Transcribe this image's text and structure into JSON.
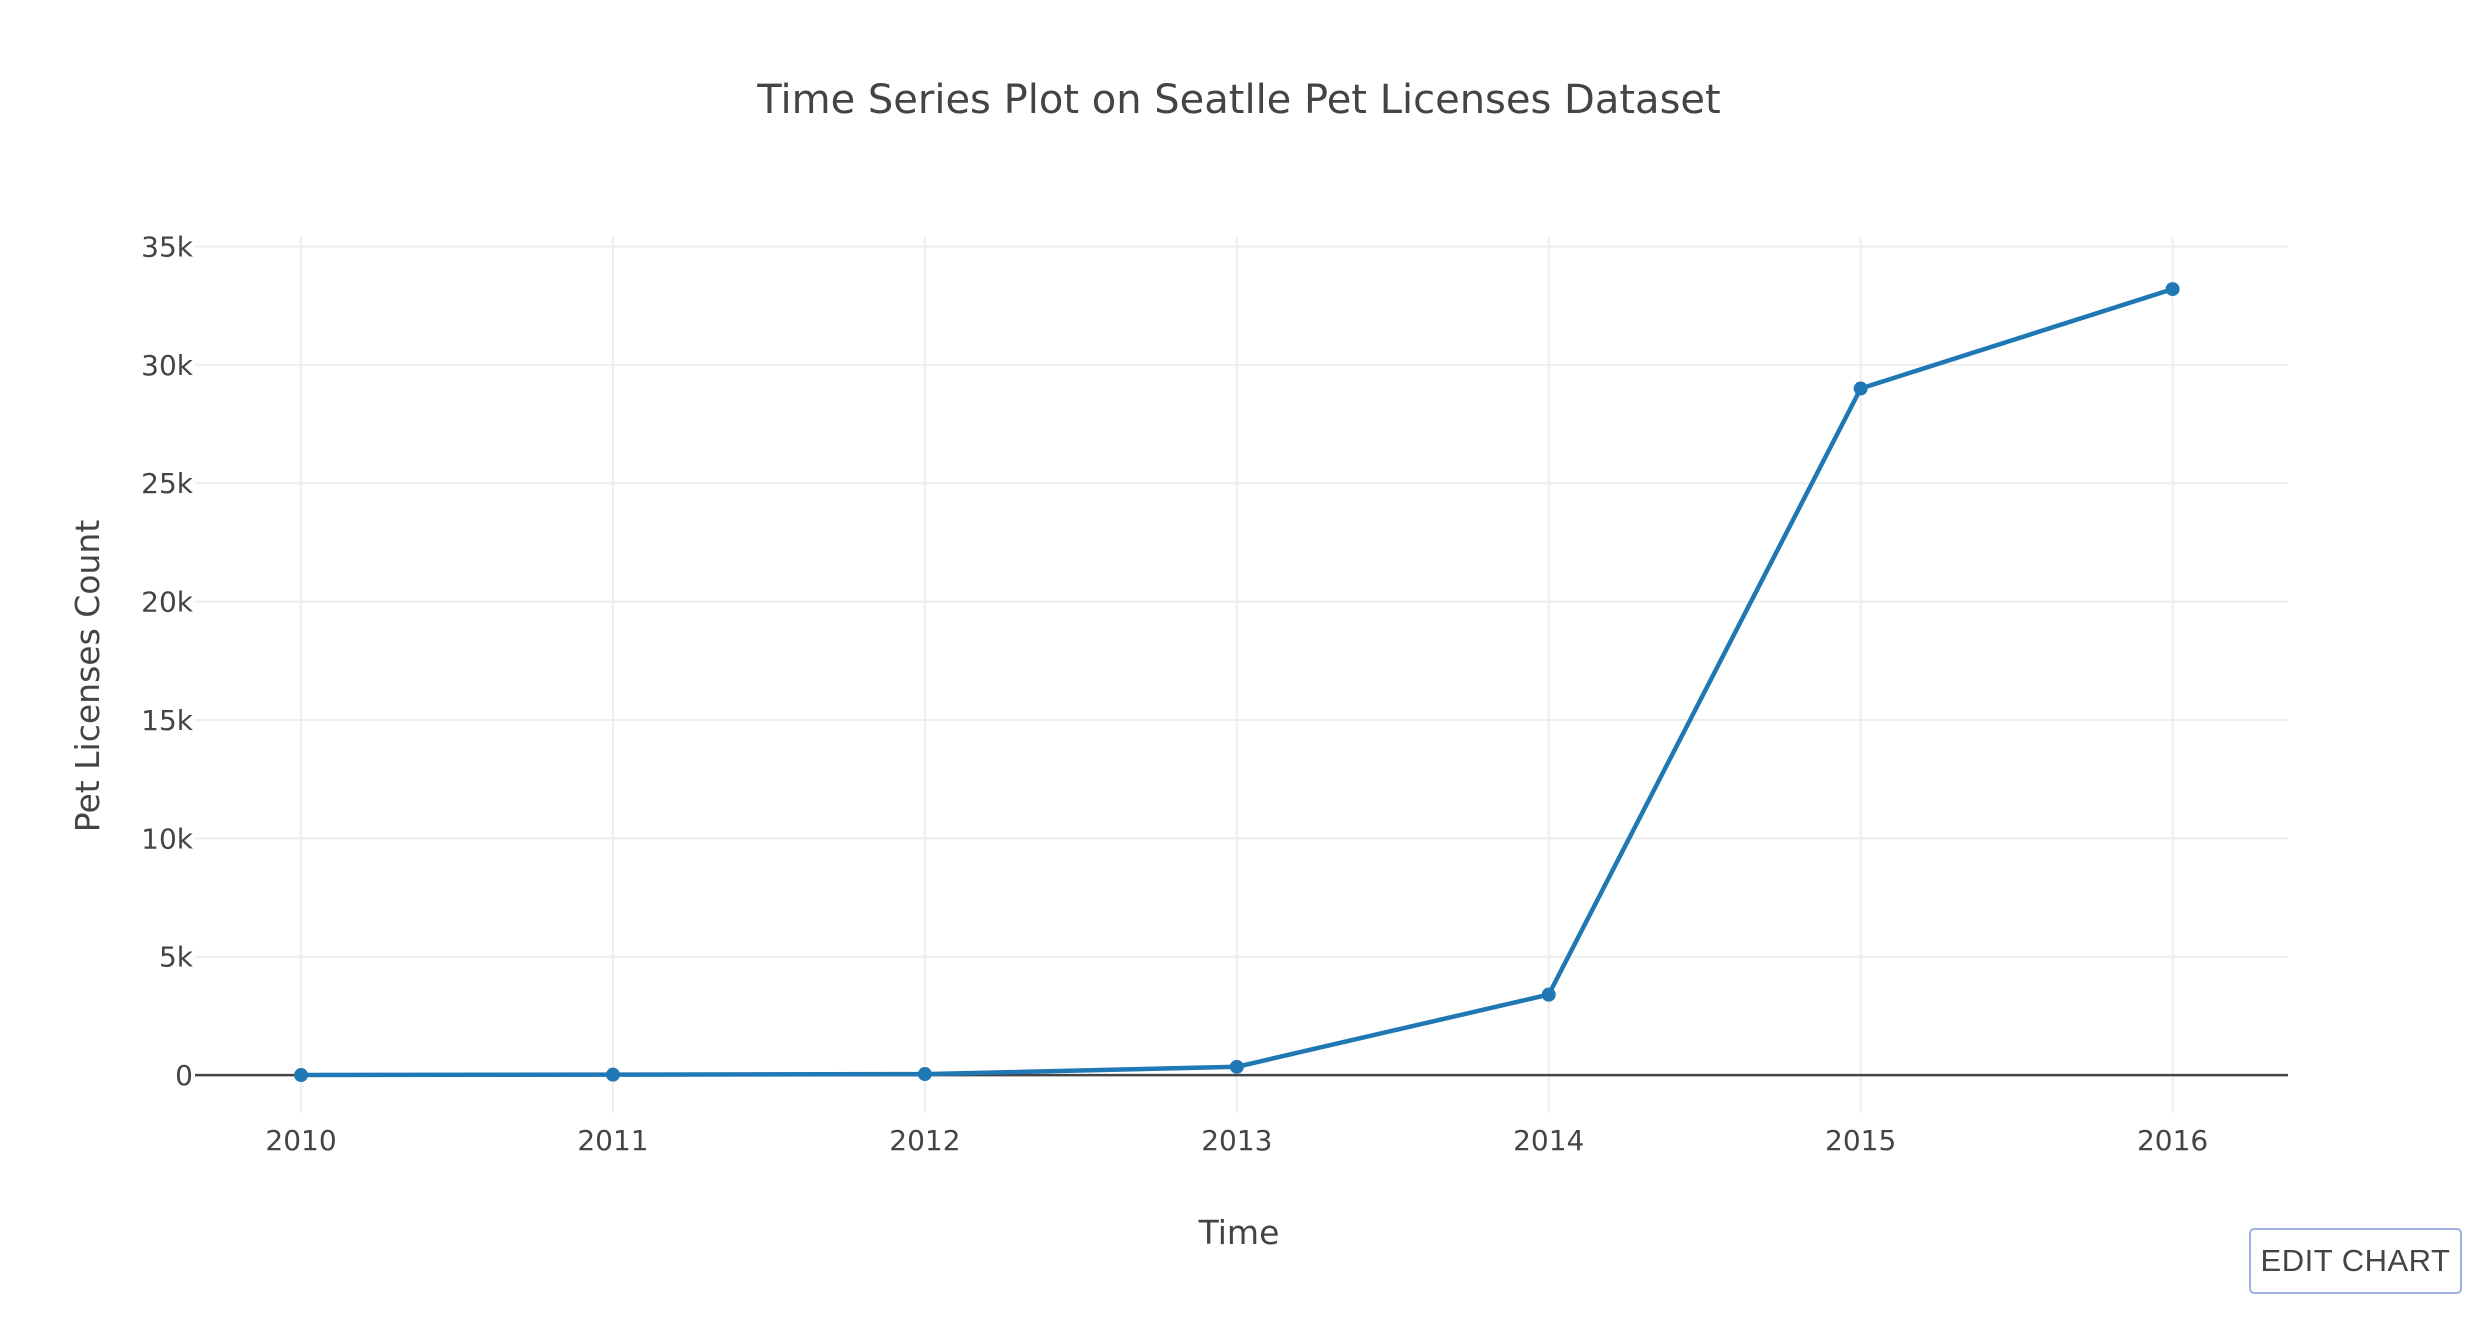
{
  "colors": {
    "series": "#1f77b4",
    "edit_button": "#9fb2e3"
  },
  "edit_button": {
    "label": "EDIT CHART"
  },
  "chart_data": {
    "type": "line",
    "title": "Time Series Plot on Seatlle Pet Licenses Dataset",
    "xlabel": "Time",
    "ylabel": "Pet Licenses Count",
    "x": [
      "2010",
      "2011",
      "2012",
      "2013",
      "2014",
      "2015",
      "2016"
    ],
    "series": [
      {
        "values": [
          3,
          20,
          45,
          350,
          3400,
          29000,
          33200
        ],
        "color": "#1f77b4",
        "mode": "lines+markers"
      }
    ],
    "x_ticks": [
      "2010",
      "2011",
      "2012",
      "2013",
      "2014",
      "2015",
      "2016"
    ],
    "y_ticks": [
      {
        "value": 0,
        "label": "0"
      },
      {
        "value": 5000,
        "label": "5k"
      },
      {
        "value": 10000,
        "label": "10k"
      },
      {
        "value": 15000,
        "label": "15k"
      },
      {
        "value": 20000,
        "label": "20k"
      },
      {
        "value": 25000,
        "label": "25k"
      },
      {
        "value": 30000,
        "label": "30k"
      },
      {
        "value": 35000,
        "label": "35k"
      }
    ],
    "ylim": [
      -1600,
      35400
    ],
    "xlim": [
      "2009.66",
      "2016.37"
    ],
    "grid": true,
    "legend": "none"
  }
}
